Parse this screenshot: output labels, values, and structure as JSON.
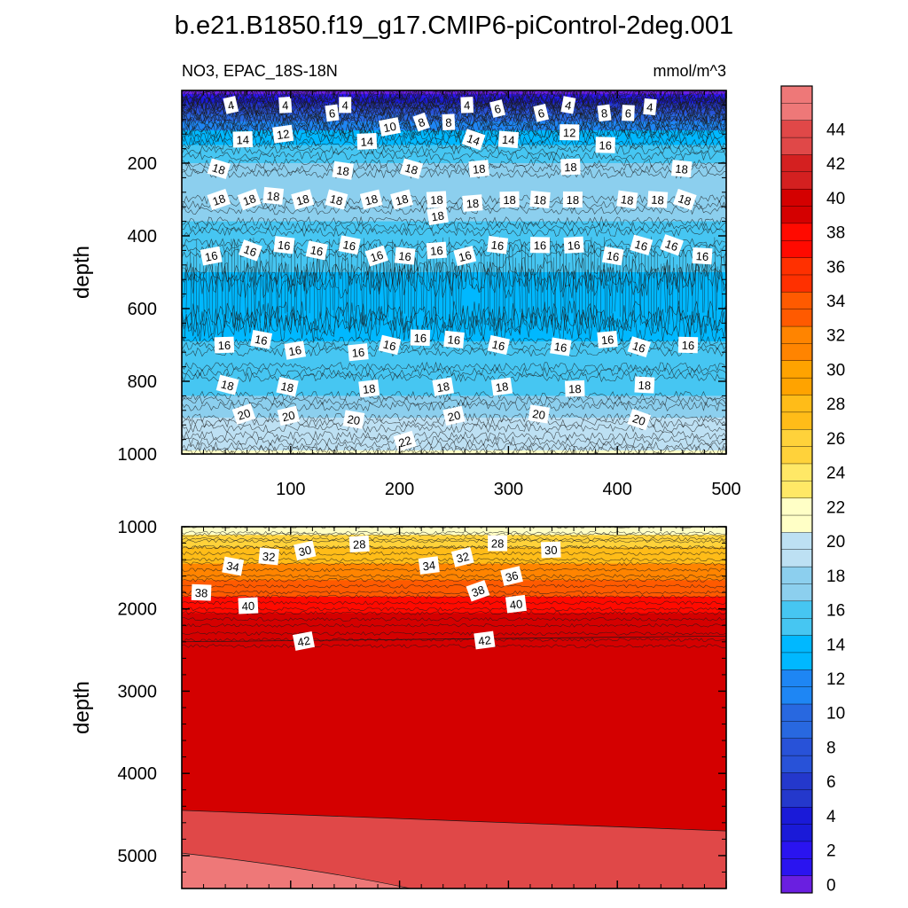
{
  "title": "b.e21.B1850.f19_g17.CMIP6-piControl-2deg.001",
  "chart_data": [
    {
      "type": "heatmap",
      "left_label": "NO3, EPAC_18S-18N",
      "right_label": "mmol/m^3",
      "xlabel": "",
      "ylabel": "depth",
      "xlim": [
        0,
        500
      ],
      "ylim": [
        1000,
        0
      ],
      "x_ticks": [
        "100",
        "200",
        "300",
        "400",
        "500"
      ],
      "y_ticks": [
        "200",
        "400",
        "600",
        "800",
        "1000"
      ],
      "contour_levels": [
        {
          "depth": 0,
          "value": 0
        },
        {
          "depth": 10,
          "value": 2
        },
        {
          "depth": 20,
          "value": 4
        },
        {
          "depth": 35,
          "value": 6
        },
        {
          "depth": 50,
          "value": 8
        },
        {
          "depth": 65,
          "value": 10
        },
        {
          "depth": 85,
          "value": 12
        },
        {
          "depth": 110,
          "value": 14
        },
        {
          "depth": 150,
          "value": 16
        },
        {
          "depth": 200,
          "value": 18
        },
        {
          "depth": 300,
          "value": 18
        },
        {
          "depth": 360,
          "value": 17
        },
        {
          "depth": 420,
          "value": 16
        },
        {
          "depth": 500,
          "value": 15
        },
        {
          "depth": 620,
          "value": 15
        },
        {
          "depth": 690,
          "value": 16
        },
        {
          "depth": 760,
          "value": 17
        },
        {
          "depth": 840,
          "value": 18
        },
        {
          "depth": 900,
          "value": 19.5
        },
        {
          "depth": 950,
          "value": 20.5
        },
        {
          "depth": 990,
          "value": 22
        }
      ],
      "labels": [
        {
          "x": 45,
          "y": 40,
          "t": "4"
        },
        {
          "x": 95,
          "y": 40,
          "t": "4"
        },
        {
          "x": 150,
          "y": 40,
          "t": "4"
        },
        {
          "x": 262,
          "y": 40,
          "t": "4"
        },
        {
          "x": 355,
          "y": 40,
          "t": "4"
        },
        {
          "x": 430,
          "y": 45,
          "t": "4"
        },
        {
          "x": 138,
          "y": 62,
          "t": "6"
        },
        {
          "x": 290,
          "y": 50,
          "t": "6"
        },
        {
          "x": 330,
          "y": 62,
          "t": "6"
        },
        {
          "x": 410,
          "y": 62,
          "t": "6"
        },
        {
          "x": 220,
          "y": 87,
          "t": "8"
        },
        {
          "x": 245,
          "y": 87,
          "t": "8"
        },
        {
          "x": 388,
          "y": 62,
          "t": "8"
        },
        {
          "x": 191,
          "y": 100,
          "t": "10"
        },
        {
          "x": 93,
          "y": 120,
          "t": "12"
        },
        {
          "x": 356,
          "y": 115,
          "t": "12"
        },
        {
          "x": 56,
          "y": 135,
          "t": "14"
        },
        {
          "x": 170,
          "y": 140,
          "t": "14"
        },
        {
          "x": 268,
          "y": 135,
          "t": "14"
        },
        {
          "x": 300,
          "y": 135,
          "t": "14"
        },
        {
          "x": 389,
          "y": 150,
          "t": "16"
        },
        {
          "x": 34,
          "y": 215,
          "t": "18"
        },
        {
          "x": 148,
          "y": 220,
          "t": "18"
        },
        {
          "x": 211,
          "y": 215,
          "t": "18"
        },
        {
          "x": 273,
          "y": 215,
          "t": "18"
        },
        {
          "x": 357,
          "y": 210,
          "t": "18"
        },
        {
          "x": 459,
          "y": 215,
          "t": "18"
        },
        {
          "x": 34,
          "y": 300,
          "t": "18"
        },
        {
          "x": 62,
          "y": 300,
          "t": "18"
        },
        {
          "x": 84,
          "y": 290,
          "t": "18"
        },
        {
          "x": 111,
          "y": 300,
          "t": "18"
        },
        {
          "x": 142,
          "y": 300,
          "t": "18"
        },
        {
          "x": 174,
          "y": 300,
          "t": "18"
        },
        {
          "x": 202,
          "y": 300,
          "t": "18"
        },
        {
          "x": 234,
          "y": 300,
          "t": "18"
        },
        {
          "x": 267,
          "y": 310,
          "t": "18"
        },
        {
          "x": 301,
          "y": 300,
          "t": "18"
        },
        {
          "x": 329,
          "y": 300,
          "t": "18"
        },
        {
          "x": 359,
          "y": 300,
          "t": "18"
        },
        {
          "x": 409,
          "y": 300,
          "t": "18"
        },
        {
          "x": 437,
          "y": 300,
          "t": "18"
        },
        {
          "x": 462,
          "y": 300,
          "t": "18"
        },
        {
          "x": 235,
          "y": 345,
          "t": "18"
        },
        {
          "x": 27,
          "y": 455,
          "t": "16"
        },
        {
          "x": 63,
          "y": 440,
          "t": "16"
        },
        {
          "x": 94,
          "y": 425,
          "t": "16"
        },
        {
          "x": 124,
          "y": 440,
          "t": "16"
        },
        {
          "x": 154,
          "y": 425,
          "t": "16"
        },
        {
          "x": 179,
          "y": 455,
          "t": "16"
        },
        {
          "x": 205,
          "y": 455,
          "t": "16"
        },
        {
          "x": 234,
          "y": 440,
          "t": "16"
        },
        {
          "x": 260,
          "y": 455,
          "t": "16"
        },
        {
          "x": 290,
          "y": 425,
          "t": "16"
        },
        {
          "x": 329,
          "y": 425,
          "t": "16"
        },
        {
          "x": 360,
          "y": 425,
          "t": "16"
        },
        {
          "x": 396,
          "y": 455,
          "t": "16"
        },
        {
          "x": 422,
          "y": 425,
          "t": "16"
        },
        {
          "x": 450,
          "y": 425,
          "t": "16"
        },
        {
          "x": 478,
          "y": 455,
          "t": "16"
        },
        {
          "x": 39,
          "y": 700,
          "t": "16"
        },
        {
          "x": 73,
          "y": 685,
          "t": "16"
        },
        {
          "x": 104,
          "y": 715,
          "t": "16"
        },
        {
          "x": 162,
          "y": 720,
          "t": "16"
        },
        {
          "x": 191,
          "y": 700,
          "t": "16"
        },
        {
          "x": 219,
          "y": 680,
          "t": "16"
        },
        {
          "x": 250,
          "y": 685,
          "t": "16"
        },
        {
          "x": 291,
          "y": 700,
          "t": "16"
        },
        {
          "x": 348,
          "y": 705,
          "t": "16"
        },
        {
          "x": 391,
          "y": 685,
          "t": "16"
        },
        {
          "x": 420,
          "y": 705,
          "t": "16"
        },
        {
          "x": 465,
          "y": 700,
          "t": "16"
        },
        {
          "x": 42,
          "y": 810,
          "t": "18"
        },
        {
          "x": 97,
          "y": 815,
          "t": "18"
        },
        {
          "x": 172,
          "y": 820,
          "t": "18"
        },
        {
          "x": 240,
          "y": 815,
          "t": "18"
        },
        {
          "x": 294,
          "y": 815,
          "t": "18"
        },
        {
          "x": 361,
          "y": 820,
          "t": "18"
        },
        {
          "x": 425,
          "y": 810,
          "t": "18"
        },
        {
          "x": 57,
          "y": 890,
          "t": "20"
        },
        {
          "x": 98,
          "y": 895,
          "t": "20"
        },
        {
          "x": 158,
          "y": 905,
          "t": "20"
        },
        {
          "x": 250,
          "y": 895,
          "t": "20"
        },
        {
          "x": 328,
          "y": 890,
          "t": "20"
        },
        {
          "x": 420,
          "y": 905,
          "t": "20"
        },
        {
          "x": 205,
          "y": 965,
          "t": "22"
        }
      ],
      "colorbar": {
        "tick_labels": [
          "0",
          "2",
          "4",
          "6",
          "8",
          "10",
          "12",
          "14",
          "16",
          "18",
          "20",
          "22",
          "24",
          "26",
          "28",
          "30",
          "32",
          "34",
          "36",
          "38",
          "40",
          "42",
          "44"
        ]
      }
    },
    {
      "type": "heatmap",
      "xlabel": "",
      "ylabel": "depth",
      "xlim": [
        0,
        500
      ],
      "ylim": [
        5400,
        1000
      ],
      "y_ticks": [
        "1000",
        "2000",
        "3000",
        "4000",
        "5000"
      ],
      "contour_levels": [
        {
          "depth": 1000,
          "value": 23
        },
        {
          "depth": 1100,
          "value": 26
        },
        {
          "depth": 1250,
          "value": 29
        },
        {
          "depth": 1450,
          "value": 32
        },
        {
          "depth": 1650,
          "value": 35
        },
        {
          "depth": 1850,
          "value": 38
        },
        {
          "depth": 2050,
          "value": 40
        },
        {
          "depth": 2300,
          "value": 41
        }
      ],
      "labels": [
        {
          "x": 113,
          "y": 1290,
          "t": "30"
        },
        {
          "x": 163,
          "y": 1210,
          "t": "28"
        },
        {
          "x": 290,
          "y": 1200,
          "t": "28"
        },
        {
          "x": 339,
          "y": 1280,
          "t": "30"
        },
        {
          "x": 47,
          "y": 1480,
          "t": "34"
        },
        {
          "x": 80,
          "y": 1360,
          "t": "32"
        },
        {
          "x": 227,
          "y": 1470,
          "t": "34"
        },
        {
          "x": 258,
          "y": 1370,
          "t": "32"
        },
        {
          "x": 303,
          "y": 1600,
          "t": "36"
        },
        {
          "x": 18,
          "y": 1800,
          "t": "38"
        },
        {
          "x": 272,
          "y": 1780,
          "t": "38"
        },
        {
          "x": 61,
          "y": 1960,
          "t": "40"
        },
        {
          "x": 307,
          "y": 1940,
          "t": "40"
        },
        {
          "x": 112,
          "y": 2390,
          "t": "42"
        },
        {
          "x": 278,
          "y": 2380,
          "t": "42"
        }
      ]
    }
  ]
}
